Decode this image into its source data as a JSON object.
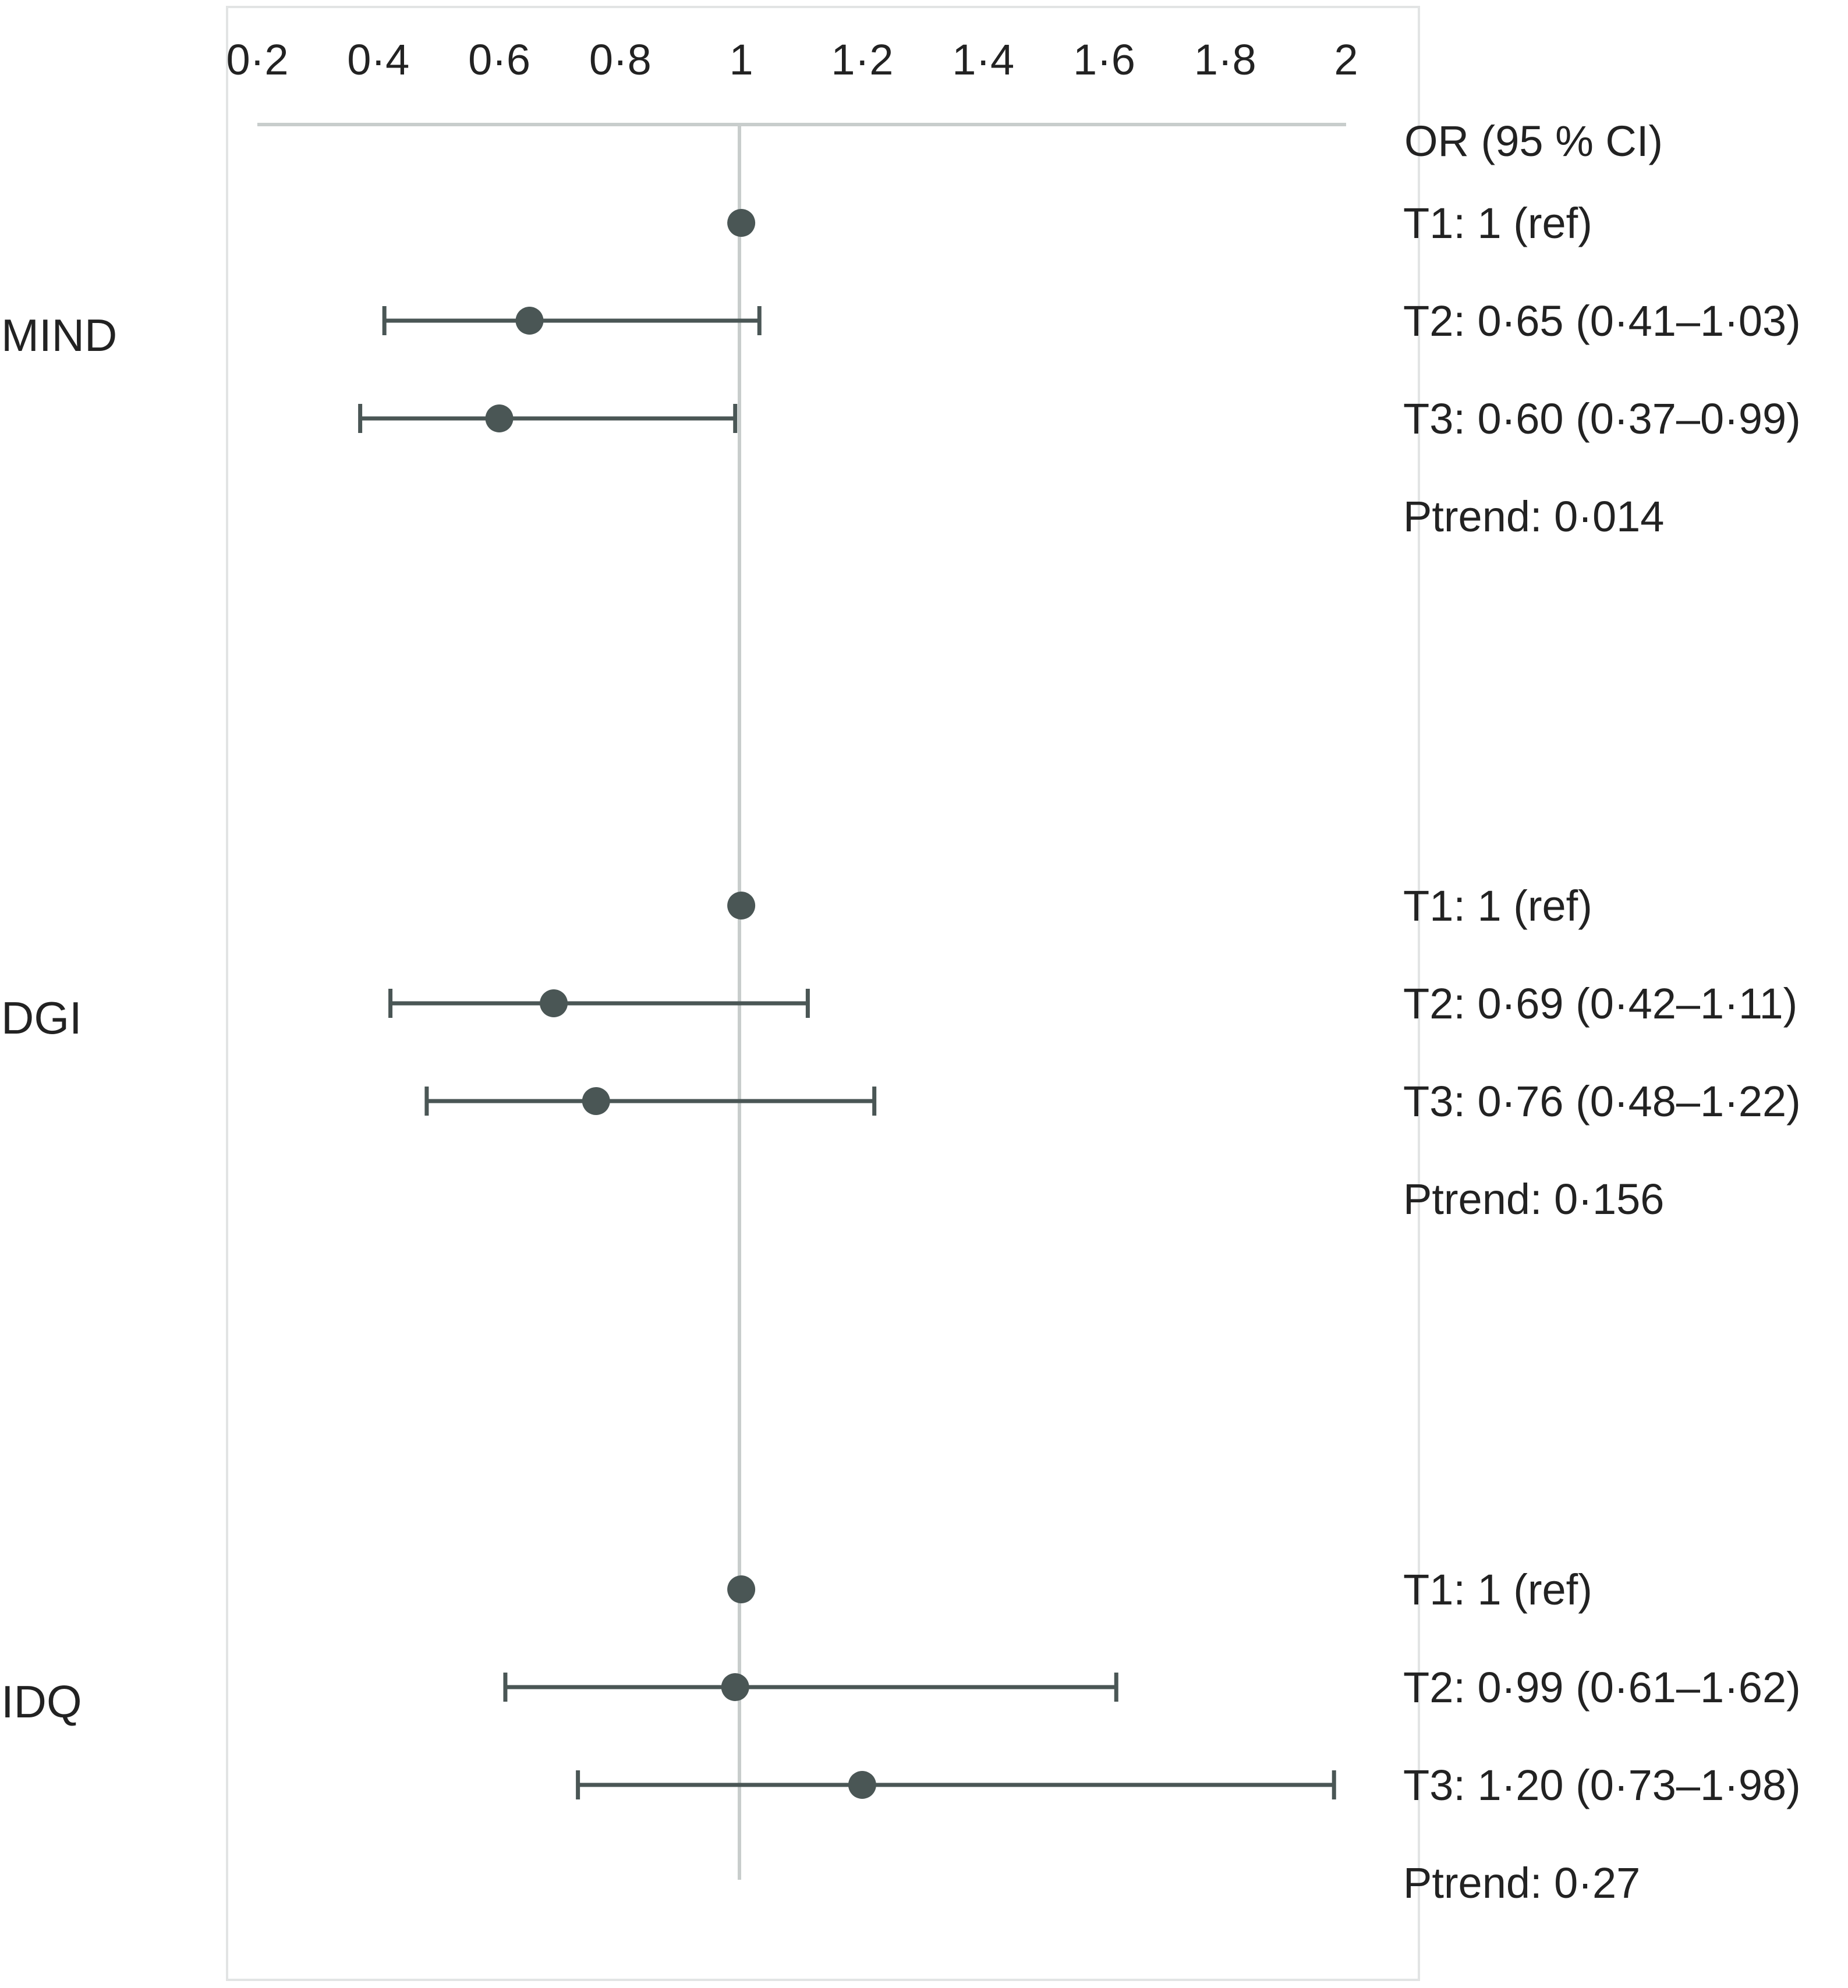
{
  "chart_data": {
    "type": "forest",
    "title": "",
    "xlabel": "",
    "ylabel": "",
    "xlim": [
      0.2,
      2
    ],
    "reference_line": 1,
    "x_ticks": [
      {
        "value": 0.2,
        "label": "0·2"
      },
      {
        "value": 0.4,
        "label": "0·4"
      },
      {
        "value": 0.6,
        "label": "0·6"
      },
      {
        "value": 0.8,
        "label": "0·8"
      },
      {
        "value": 1,
        "label": "1"
      },
      {
        "value": 1.2,
        "label": "1·2"
      },
      {
        "value": 1.4,
        "label": "1·4"
      },
      {
        "value": 1.6,
        "label": "1·6"
      },
      {
        "value": 1.8,
        "label": "1·8"
      },
      {
        "value": 2,
        "label": "2"
      }
    ],
    "header": "OR (95 % CI)",
    "groups": [
      {
        "name": "MIND",
        "rows": [
          {
            "label": "T1: 1 (ref)",
            "or": 1,
            "lo": null,
            "hi": null
          },
          {
            "label": "T2: 0·65 (0·41–1·03)",
            "or": 0.65,
            "lo": 0.41,
            "hi": 1.03
          },
          {
            "label": "T3: 0·60 (0·37–0·99)",
            "or": 0.6,
            "lo": 0.37,
            "hi": 0.99
          }
        ],
        "ptrend": "Ptrend: 0·014"
      },
      {
        "name": "DGI",
        "rows": [
          {
            "label": "T1: 1 (ref)",
            "or": 1,
            "lo": null,
            "hi": null
          },
          {
            "label": "T2: 0·69 (0·42–1·11)",
            "or": 0.69,
            "lo": 0.42,
            "hi": 1.11
          },
          {
            "label": "T3: 0·76 (0·48–1·22)",
            "or": 0.76,
            "lo": 0.48,
            "hi": 1.22
          }
        ],
        "ptrend": "Ptrend: 0·156"
      },
      {
        "name": "IDQ",
        "rows": [
          {
            "label": "T1: 1 (ref)",
            "or": 1,
            "lo": null,
            "hi": null
          },
          {
            "label": "T2: 0·99 (0·61–1·62)",
            "or": 0.99,
            "lo": 0.61,
            "hi": 1.62
          },
          {
            "label": "T3: 1·20 (0·73–1·98)",
            "or": 1.2,
            "lo": 0.73,
            "hi": 1.98
          }
        ],
        "ptrend": "Ptrend: 0·27"
      }
    ],
    "grid": false,
    "colors": {
      "marker": "#4a5655",
      "axis": "#c8cdcc",
      "frame": "#e2e4e4",
      "text": "#222222"
    }
  }
}
